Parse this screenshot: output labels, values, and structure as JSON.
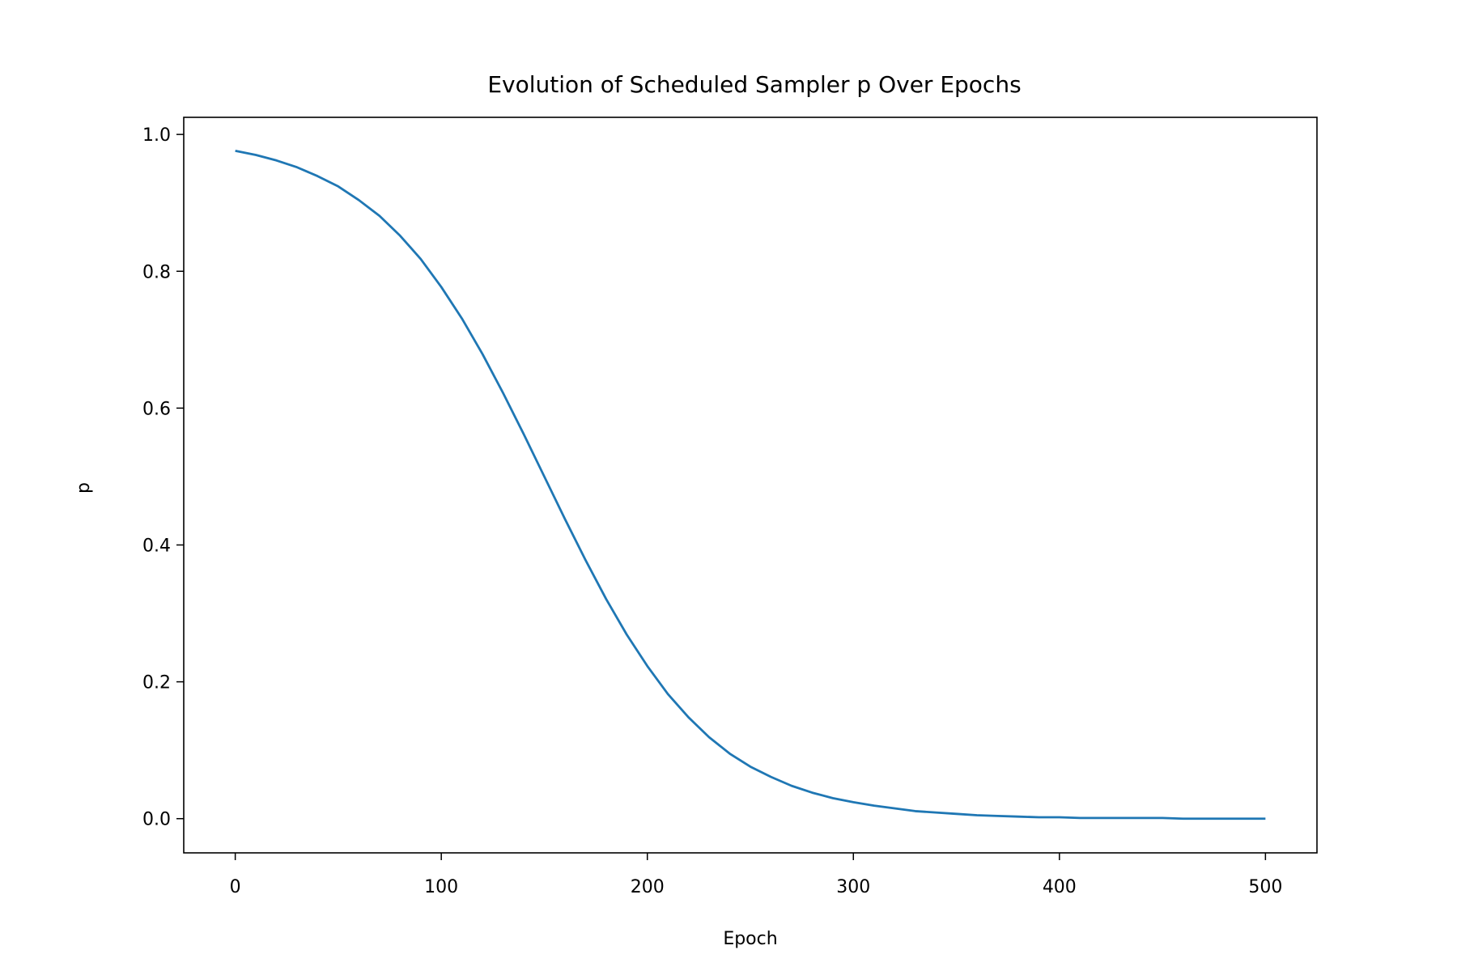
{
  "chart_data": {
    "type": "line",
    "title": "Evolution of Scheduled Sampler p Over Epochs",
    "xlabel": "Epoch",
    "ylabel": "p",
    "xlim": [
      -25,
      525
    ],
    "ylim": [
      -0.05,
      1.025
    ],
    "xticks": [
      0,
      100,
      200,
      300,
      400,
      500
    ],
    "xtick_labels": [
      "0",
      "100",
      "200",
      "300",
      "400",
      "500"
    ],
    "yticks": [
      0.0,
      0.2,
      0.4,
      0.6,
      0.8,
      1.0
    ],
    "ytick_labels": [
      "0.0",
      "0.2",
      "0.4",
      "0.6",
      "0.8",
      "1.0"
    ],
    "grid": false,
    "colors": {
      "series": "#1f77b4"
    },
    "series": [
      {
        "x": [
          0,
          10,
          20,
          30,
          40,
          50,
          60,
          70,
          80,
          90,
          100,
          110,
          120,
          130,
          140,
          150,
          160,
          170,
          180,
          190,
          200,
          210,
          220,
          230,
          240,
          250,
          260,
          270,
          280,
          290,
          300,
          310,
          320,
          330,
          340,
          350,
          360,
          370,
          380,
          390,
          400,
          410,
          420,
          430,
          440,
          450,
          460,
          470,
          480,
          490,
          500
        ],
        "values": [
          0.976,
          0.97,
          0.962,
          0.952,
          0.939,
          0.924,
          0.904,
          0.881,
          0.852,
          0.818,
          0.777,
          0.731,
          0.679,
          0.622,
          0.562,
          0.5,
          0.438,
          0.378,
          0.321,
          0.269,
          0.223,
          0.182,
          0.148,
          0.119,
          0.095,
          0.076,
          0.061,
          0.048,
          0.038,
          0.03,
          0.024,
          0.019,
          0.015,
          0.011,
          0.009,
          0.007,
          0.005,
          0.004,
          0.003,
          0.002,
          0.002,
          0.001,
          0.001,
          0.001,
          0.001,
          0.001,
          0.0,
          0.0,
          0.0,
          0.0,
          0.0
        ]
      }
    ]
  }
}
